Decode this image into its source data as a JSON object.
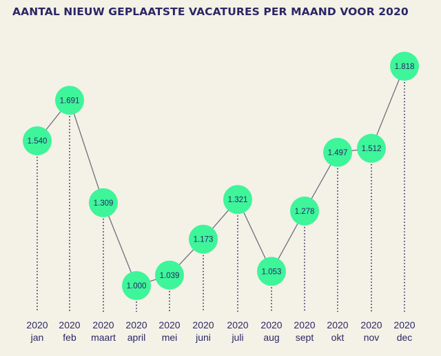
{
  "chart_data": {
    "type": "line",
    "title": "AANTAL NIEUW GEPLAATSTE VACATURES PER MAAND VOOR 2020",
    "years": [
      "2020",
      "2020",
      "2020",
      "2020",
      "2020",
      "2020",
      "2020",
      "2020",
      "2020",
      "2020",
      "2020",
      "2020"
    ],
    "categories": [
      "jan",
      "feb",
      "maart",
      "april",
      "mei",
      "juni",
      "juli",
      "aug",
      "sept",
      "okt",
      "nov",
      "dec"
    ],
    "values": [
      1540,
      1691,
      1309,
      1000,
      1039,
      1173,
      1321,
      1053,
      1278,
      1497,
      1512,
      1818
    ],
    "value_labels": [
      "1.540",
      "1.691",
      "1.309",
      "1.000",
      "1.039",
      "1.173",
      "1.321",
      "1.053",
      "1.278",
      "1.497",
      "1.512",
      "1.818"
    ],
    "colors": {
      "background": "#f4f1e6",
      "marker": "#3ef59a",
      "line": "#6f6d7d",
      "text": "#2a2766"
    }
  }
}
